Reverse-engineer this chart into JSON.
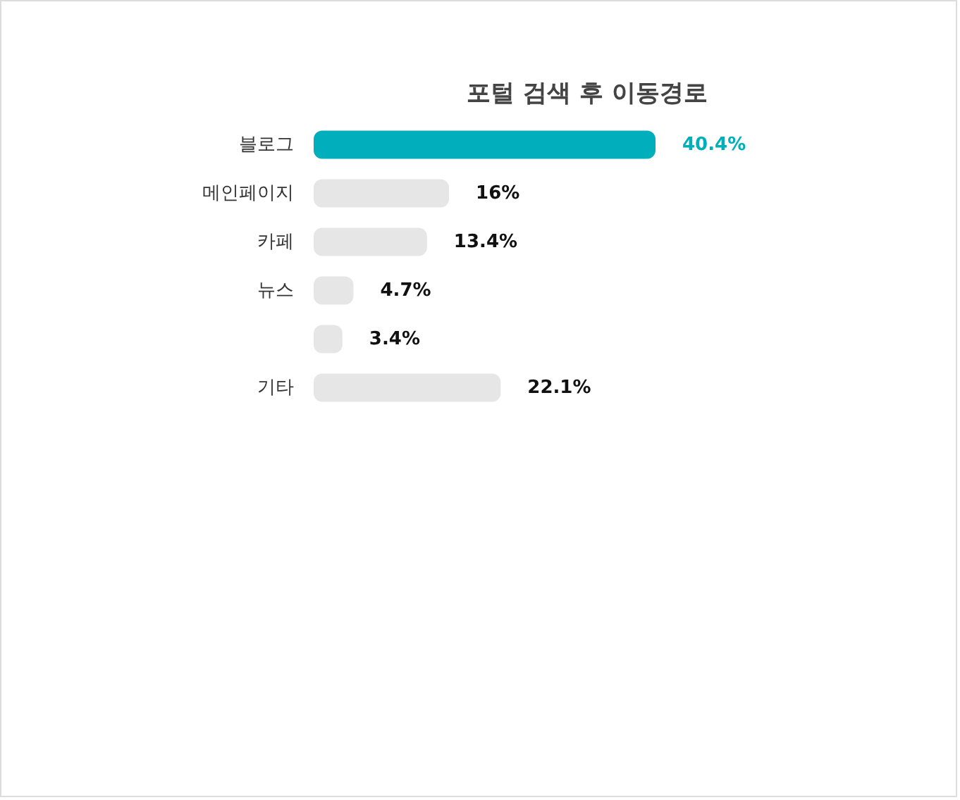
{
  "chart_data": {
    "type": "bar",
    "orientation": "horizontal",
    "title": "포털 검색 후 이동경로",
    "categories": [
      "블로그",
      "메인페이지",
      "카페",
      "뉴스",
      null,
      "기타"
    ],
    "values": [
      40.4,
      16,
      13.4,
      4.7,
      3.4,
      22.1
    ],
    "colors": [
      "#00afbb",
      "#e6e6e6",
      "#e6e6e6",
      "#e6e6e6",
      "#e6e6e6",
      "#e6e6e6"
    ],
    "value_labels": [
      "40.4%",
      "16%",
      "13.4%",
      "4.7%",
      "3.4%",
      "22.1%"
    ]
  }
}
